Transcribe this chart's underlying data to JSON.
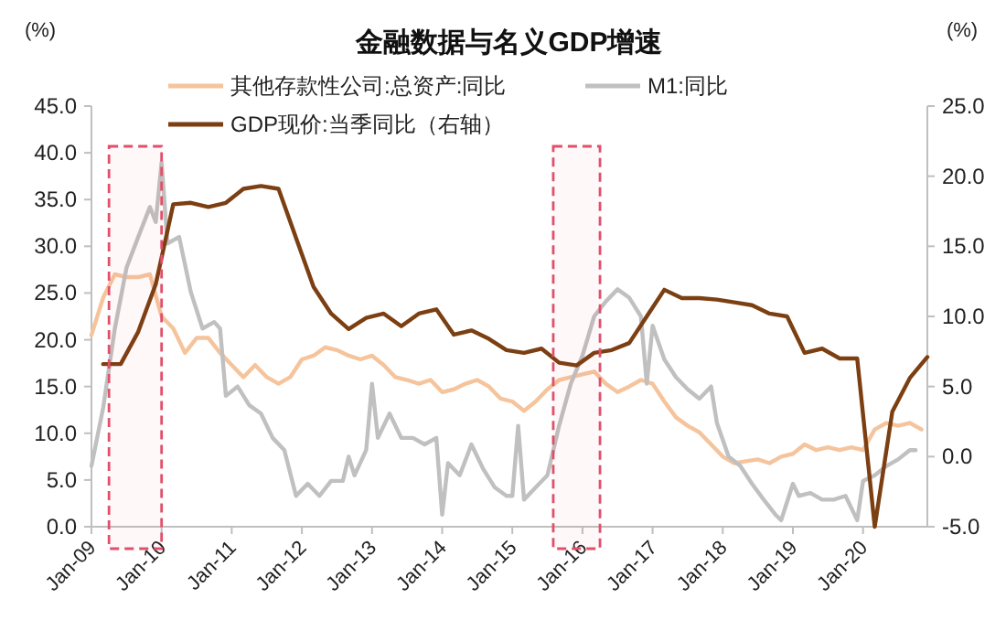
{
  "chart_data": {
    "type": "line",
    "title": "金融数据与名义GDP增速",
    "ylabel": "(%)",
    "y2label": "(%)",
    "xlim": [
      "2009-01",
      "2020-12"
    ],
    "xticks": [
      {
        "value": "2009-01",
        "label": "Jan-09"
      },
      {
        "value": "2010-01",
        "label": "Jan-10"
      },
      {
        "value": "2011-01",
        "label": "Jan-11"
      },
      {
        "value": "2012-01",
        "label": "Jan-12"
      },
      {
        "value": "2013-01",
        "label": "Jan-13"
      },
      {
        "value": "2014-01",
        "label": "Jan-14"
      },
      {
        "value": "2015-01",
        "label": "Jan-15"
      },
      {
        "value": "2016-01",
        "label": "Jan-16"
      },
      {
        "value": "2017-01",
        "label": "Jan-17"
      },
      {
        "value": "2018-01",
        "label": "Jan-18"
      },
      {
        "value": "2019-01",
        "label": "Jan-19"
      },
      {
        "value": "2020-01",
        "label": "Jan-20"
      }
    ],
    "ylim": [
      0,
      45
    ],
    "yticks": [
      {
        "value": 0,
        "label": "0.0"
      },
      {
        "value": 5,
        "label": "5.0"
      },
      {
        "value": 10,
        "label": "10.0"
      },
      {
        "value": 15,
        "label": "15.0"
      },
      {
        "value": 20,
        "label": "20.0"
      },
      {
        "value": 25,
        "label": "25.0"
      },
      {
        "value": 30,
        "label": "30.0"
      },
      {
        "value": 35,
        "label": "35.0"
      },
      {
        "value": 40,
        "label": "40.0"
      },
      {
        "value": 45,
        "label": "45.0"
      }
    ],
    "y2lim": [
      -5,
      25
    ],
    "y2ticks": [
      {
        "value": -5,
        "label": "-5.0"
      },
      {
        "value": 0,
        "label": "0.0"
      },
      {
        "value": 5,
        "label": "5.0"
      },
      {
        "value": 10,
        "label": "10.0"
      },
      {
        "value": 15,
        "label": "15.0"
      },
      {
        "value": 20,
        "label": "20.0"
      },
      {
        "value": 25,
        "label": "25.0"
      }
    ],
    "legend": "top left",
    "grid": false,
    "bands": [
      {
        "axis": "x",
        "from": "2009-04",
        "to": "2010-01",
        "color": "#e0506a"
      },
      {
        "axis": "x",
        "from": "2015-08",
        "to": "2016-04",
        "color": "#e0506a"
      }
    ],
    "series": [
      {
        "name": "其他存款性公司:总资产:同比",
        "color": "#f5c49c",
        "x": [
          "2009-01",
          "2009-03",
          "2009-05",
          "2009-07",
          "2009-09",
          "2009-11",
          "2010-01",
          "2010-03",
          "2010-05",
          "2010-07",
          "2010-09",
          "2010-11",
          "2011-01",
          "2011-03",
          "2011-05",
          "2011-07",
          "2011-09",
          "2011-11",
          "2012-01",
          "2012-03",
          "2012-05",
          "2012-07",
          "2012-09",
          "2012-11",
          "2013-01",
          "2013-03",
          "2013-05",
          "2013-07",
          "2013-09",
          "2013-11",
          "2014-01",
          "2014-03",
          "2014-05",
          "2014-07",
          "2014-09",
          "2014-11",
          "2015-01",
          "2015-03",
          "2015-05",
          "2015-07",
          "2015-09",
          "2015-11",
          "2016-01",
          "2016-03",
          "2016-05",
          "2016-07",
          "2016-09",
          "2016-11",
          "2017-01",
          "2017-03",
          "2017-05",
          "2017-07",
          "2017-09",
          "2017-11",
          "2018-01",
          "2018-03",
          "2018-05",
          "2018-07",
          "2018-09",
          "2018-11",
          "2019-01",
          "2019-03",
          "2019-05",
          "2019-07",
          "2019-09",
          "2019-11",
          "2020-01",
          "2020-03",
          "2020-05",
          "2020-07",
          "2020-09",
          "2020-11"
        ],
        "values": [
          20.5,
          24.5,
          27,
          26.7,
          26.7,
          27,
          22.5,
          21.2,
          18.6,
          20.2,
          20.2,
          18.6,
          17.3,
          16,
          17.3,
          16,
          15.3,
          16,
          17.9,
          18.3,
          19.2,
          18.9,
          18.3,
          17.9,
          18.3,
          17.3,
          16,
          15.7,
          15.3,
          15.7,
          14.4,
          14.7,
          15.3,
          15.7,
          15,
          13.7,
          13.4,
          12.4,
          13.4,
          14.7,
          15.7,
          16,
          16.3,
          16.6,
          15.3,
          14.4,
          15,
          15.7,
          15.3,
          13.4,
          11.7,
          10.8,
          10.1,
          8.8,
          7.5,
          6.8,
          7,
          7.2,
          6.8,
          7.5,
          7.8,
          8.8,
          8.2,
          8.5,
          8.2,
          8.5,
          8.2,
          10.4,
          11.1,
          10.8,
          11.1,
          10.4
        ]
      },
      {
        "name": "M1:同比",
        "color": "#c0c0c0",
        "x": [
          "2009-01",
          "2009-03",
          "2009-05",
          "2009-07",
          "2009-09",
          "2009-11",
          "2009-12",
          "2010-01",
          "2010-02",
          "2010-04",
          "2010-06",
          "2010-08",
          "2010-10",
          "2010-11",
          "2010-12",
          "2011-02",
          "2011-04",
          "2011-06",
          "2011-08",
          "2011-10",
          "2011-12",
          "2012-02",
          "2012-04",
          "2012-06",
          "2012-08",
          "2012-09",
          "2012-10",
          "2012-12",
          "2013-01",
          "2013-02",
          "2013-04",
          "2013-06",
          "2013-08",
          "2013-10",
          "2013-12",
          "2014-01",
          "2014-02",
          "2014-04",
          "2014-06",
          "2014-08",
          "2014-10",
          "2014-12",
          "2015-01",
          "2015-02",
          "2015-03",
          "2015-05",
          "2015-07",
          "2015-09",
          "2015-11",
          "2016-01",
          "2016-03",
          "2016-05",
          "2016-07",
          "2016-09",
          "2016-11",
          "2016-12",
          "2017-01",
          "2017-03",
          "2017-05",
          "2017-07",
          "2017-09",
          "2017-11",
          "2017-12",
          "2018-02",
          "2018-04",
          "2018-06",
          "2018-08",
          "2018-10",
          "2018-11",
          "2019-01",
          "2019-02",
          "2019-04",
          "2019-06",
          "2019-08",
          "2019-10",
          "2019-12",
          "2020-01",
          "2020-03",
          "2020-05",
          "2020-07",
          "2020-09",
          "2020-10"
        ],
        "values": [
          6.5,
          12.7,
          21.2,
          27.7,
          31,
          34.2,
          32.6,
          39,
          30.3,
          31,
          25.1,
          21.2,
          21.9,
          21.2,
          14,
          15,
          13,
          12.1,
          9.5,
          8.2,
          3.3,
          4.6,
          3.3,
          4.9,
          4.9,
          7.5,
          5.5,
          8.2,
          15.3,
          9.5,
          12.1,
          9.5,
          9.5,
          8.8,
          9.5,
          1.3,
          6.8,
          5.5,
          8.8,
          6.2,
          4.2,
          3.3,
          3.3,
          10.8,
          2.9,
          4.2,
          5.5,
          10.8,
          15.3,
          18.3,
          22.5,
          24.1,
          25.4,
          24.5,
          22.5,
          15.3,
          21.5,
          17.9,
          16,
          14.7,
          13.7,
          15,
          11.1,
          7.5,
          6.5,
          4.6,
          2.9,
          1.3,
          0.7,
          4.6,
          3.3,
          3.6,
          2.9,
          2.9,
          3.3,
          0.7,
          4.9,
          5.5,
          6.5,
          7.2,
          8.2,
          8.2
        ]
      },
      {
        "name": "GDP现价:当季同比（右轴）",
        "color": "#7b3f12",
        "axis": "y2",
        "x": [
          "2009-03",
          "2009-06",
          "2009-09",
          "2009-12",
          "2010-03",
          "2010-06",
          "2010-09",
          "2010-12",
          "2011-03",
          "2011-06",
          "2011-09",
          "2011-12",
          "2012-03",
          "2012-06",
          "2012-09",
          "2012-12",
          "2013-03",
          "2013-06",
          "2013-09",
          "2013-12",
          "2014-03",
          "2014-06",
          "2014-09",
          "2014-12",
          "2015-03",
          "2015-06",
          "2015-09",
          "2015-12",
          "2016-03",
          "2016-06",
          "2016-09",
          "2016-12",
          "2017-03",
          "2017-06",
          "2017-09",
          "2017-12",
          "2018-03",
          "2018-06",
          "2018-09",
          "2018-12",
          "2019-03",
          "2019-06",
          "2019-09",
          "2019-12",
          "2020-03",
          "2020-06",
          "2020-09",
          "2020-12"
        ],
        "values": [
          6.6,
          6.6,
          8.9,
          12.3,
          18,
          18.1,
          17.8,
          18.1,
          19.1,
          19.3,
          19.1,
          15.6,
          12.1,
          10.2,
          9.1,
          9.9,
          10.2,
          9.3,
          10.2,
          10.5,
          8.7,
          9,
          8.4,
          7.6,
          7.4,
          7.7,
          6.7,
          6.5,
          7.4,
          7.6,
          8.1,
          10,
          11.9,
          11.3,
          11.3,
          11.2,
          11,
          10.8,
          10.2,
          10,
          7.4,
          7.7,
          7,
          7,
          -5,
          3.2,
          5.6,
          7.1
        ]
      }
    ]
  }
}
